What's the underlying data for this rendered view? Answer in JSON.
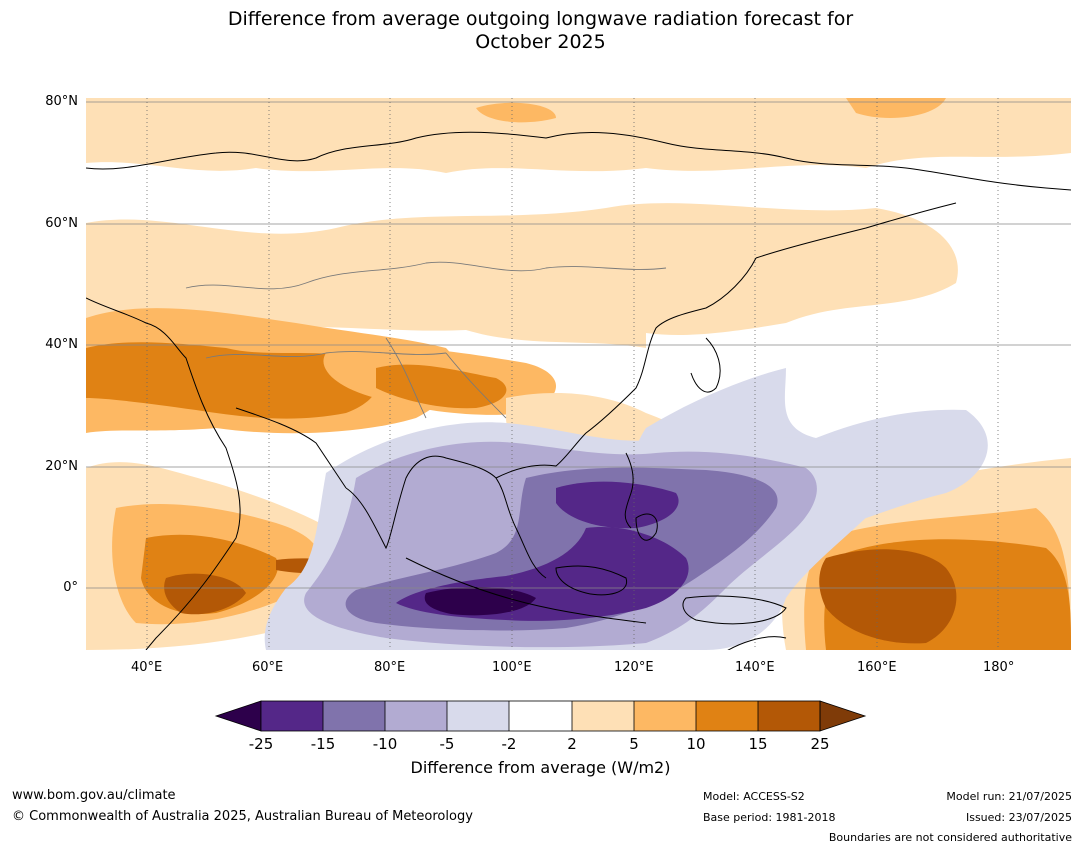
{
  "title_line1": "Difference from average outgoing longwave radiation forecast for",
  "title_line2": "October 2025",
  "lat_labels": [
    "80°N",
    "60°N",
    "40°N",
    "20°N",
    "0°"
  ],
  "lon_labels": [
    "40°E",
    "60°E",
    "80°E",
    "100°E",
    "120°E",
    "140°E",
    "160°E",
    "180°"
  ],
  "colorbar": {
    "ticks": [
      "-25",
      "-15",
      "-10",
      "-5",
      "-2",
      "2",
      "5",
      "10",
      "15",
      "25"
    ],
    "label": "Difference from average (W/m2)",
    "colors": {
      "below_-25": "#2d004b",
      "-25_-15": "#542788",
      "-15_-10": "#8073ac",
      "-10_-5": "#b2abd2",
      "-5_-2": "#d8daeb",
      "-2_2": "#ffffff",
      "2_5": "#fee0b6",
      "5_10": "#fdb863",
      "10_15": "#e08214",
      "15_25": "#b35806",
      "above_25": "#7f3b08"
    }
  },
  "footer": {
    "website": "www.bom.gov.au/climate",
    "copyright": "© Commonwealth of Australia 2025, Australian Bureau of Meteorology",
    "model": "Model: ACCESS-S2",
    "base_period": "Base period: 1981-2018",
    "model_run": "Model run: 21/07/2025",
    "issued": "Issued: 23/07/2025",
    "disclaimer": "Boundaries are not considered authoritative"
  }
}
